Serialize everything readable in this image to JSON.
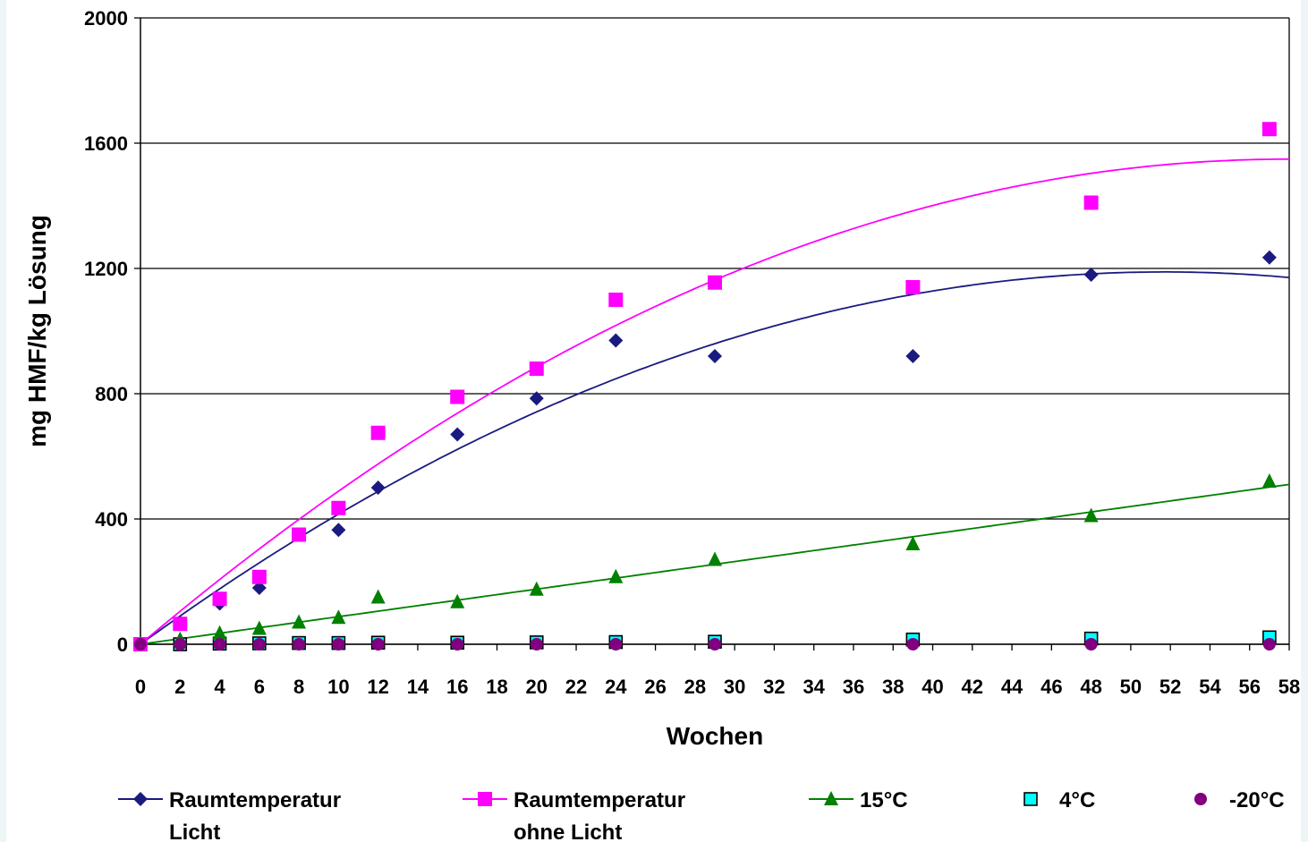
{
  "chart_data": {
    "type": "scatter",
    "title": "",
    "xlabel": "Wochen",
    "ylabel": "mg HMF/kg Lösung",
    "xlim": [
      0,
      58
    ],
    "ylim": [
      0,
      2000
    ],
    "xticks": [
      0,
      2,
      4,
      6,
      8,
      10,
      12,
      14,
      16,
      18,
      20,
      22,
      24,
      26,
      28,
      30,
      32,
      34,
      36,
      38,
      40,
      42,
      44,
      46,
      48,
      50,
      52,
      54,
      56,
      58
    ],
    "yticks": [
      0,
      400,
      800,
      1200,
      1600,
      2000
    ],
    "grid": "horizontal",
    "legend_position": "bottom",
    "series": [
      {
        "name": "Raumtemperatur Licht",
        "marker": "diamond",
        "color": "#1a1a80",
        "trendline": "polynomial",
        "x": [
          0,
          2,
          4,
          6,
          8,
          10,
          12,
          16,
          20,
          24,
          29,
          39,
          48,
          57
        ],
        "y": [
          0,
          70,
          130,
          180,
          350,
          365,
          500,
          670,
          785,
          970,
          920,
          920,
          1180,
          1235
        ]
      },
      {
        "name": "Raumtemperatur ohne Licht",
        "marker": "square",
        "color": "#ff00ff",
        "trendline": "polynomial",
        "x": [
          0,
          2,
          4,
          6,
          8,
          10,
          12,
          16,
          20,
          24,
          29,
          39,
          48,
          57
        ],
        "y": [
          0,
          65,
          145,
          215,
          350,
          435,
          675,
          790,
          880,
          1100,
          1155,
          1140,
          1410,
          1645
        ]
      },
      {
        "name": "15°C",
        "marker": "triangle",
        "color": "#008000",
        "trendline": "linear",
        "x": [
          0,
          2,
          4,
          6,
          8,
          10,
          12,
          16,
          20,
          24,
          29,
          39,
          48,
          57
        ],
        "y": [
          0,
          15,
          35,
          50,
          70,
          85,
          150,
          135,
          175,
          215,
          270,
          320,
          410,
          520
        ]
      },
      {
        "name": "4°C",
        "marker": "square-open",
        "color": "#00ffff",
        "trendline": "none",
        "x": [
          0,
          2,
          4,
          6,
          8,
          10,
          12,
          16,
          20,
          24,
          29,
          39,
          48,
          57
        ],
        "y": [
          0,
          0,
          2,
          3,
          4,
          4,
          5,
          5,
          6,
          7,
          8,
          15,
          18,
          22
        ]
      },
      {
        "name": "-20°C",
        "marker": "circle",
        "color": "#800080",
        "trendline": "none",
        "x": [
          0,
          2,
          4,
          6,
          8,
          10,
          12,
          16,
          20,
          24,
          29,
          39,
          48,
          57
        ],
        "y": [
          0,
          0,
          0,
          0,
          0,
          0,
          0,
          0,
          0,
          0,
          0,
          0,
          0,
          0
        ]
      }
    ],
    "trendlines": [
      {
        "series": "Raumtemperatur Licht",
        "color": "#1a1a80",
        "coeffs": [
          0,
          46.0,
          -0.445
        ]
      },
      {
        "series": "Raumtemperatur ohne Licht",
        "color": "#ff00ff",
        "coeffs": [
          0,
          53.5,
          -0.462
        ]
      },
      {
        "series": "15°C",
        "color": "#008000",
        "coeffs": [
          0,
          8.8,
          0
        ]
      }
    ],
    "legend": [
      {
        "series": "Raumtemperatur Licht",
        "lines": [
          "Raumtemperatur",
          "Licht"
        ],
        "line": true
      },
      {
        "series": "Raumtemperatur ohne Licht",
        "lines": [
          "Raumtemperatur",
          "ohne Licht"
        ],
        "line": true
      },
      {
        "series": "15°C",
        "lines": [
          "15°C"
        ],
        "line": true
      },
      {
        "series": "4°C",
        "lines": [
          "4°C"
        ],
        "line": false
      },
      {
        "series": "-20°C",
        "lines": [
          "-20°C"
        ],
        "line": false
      }
    ]
  }
}
